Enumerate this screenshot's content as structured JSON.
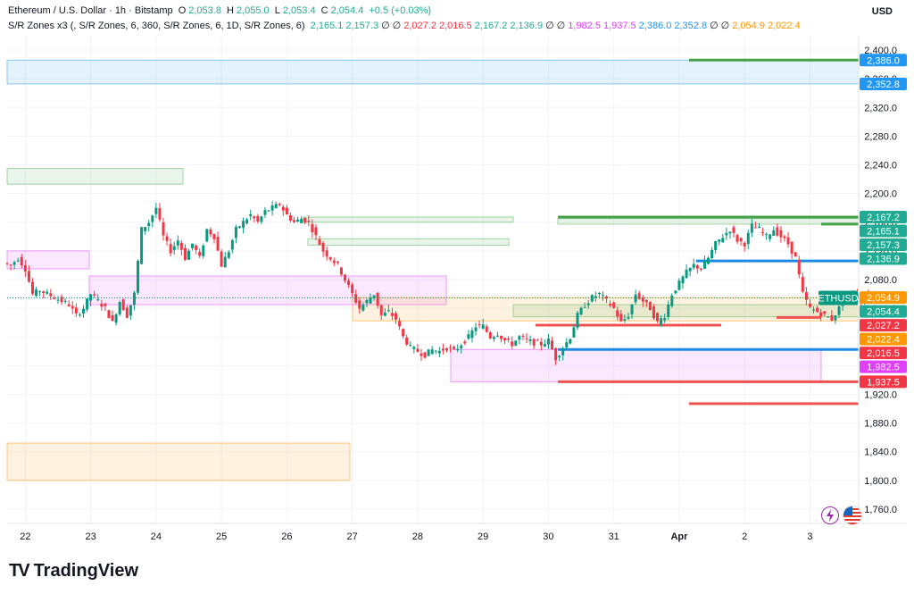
{
  "header": {
    "title": "Ethereum / U.S. Dollar · 1h · Bitstamp",
    "ohlc": [
      {
        "k": "O",
        "v": "2,053.8"
      },
      {
        "k": "H",
        "v": "2,055.0"
      },
      {
        "k": "L",
        "v": "2,053.4"
      },
      {
        "k": "C",
        "v": "2,054.4"
      }
    ],
    "change": "+0.5 (+0.03%)",
    "indicator_name": "S/R Zones x3 (, S/R Zones, 6, 360, S/R Zones, 6, 1D, S/R Zones, 6)",
    "indicator_values": [
      {
        "v": "2,165.1",
        "c": "#22ab94"
      },
      {
        "v": "2,157.3",
        "c": "#22ab94"
      },
      {
        "v": "∅",
        "c": "#131722"
      },
      {
        "v": "∅",
        "c": "#131722"
      },
      {
        "v": "2,027.2",
        "c": "#f23645"
      },
      {
        "v": "2,016.5",
        "c": "#f23645"
      },
      {
        "v": "2,167.2",
        "c": "#22ab94"
      },
      {
        "v": "2,136.9",
        "c": "#22ab94"
      },
      {
        "v": "∅",
        "c": "#131722"
      },
      {
        "v": "∅",
        "c": "#131722"
      },
      {
        "v": "1,982.5",
        "c": "#e040fb"
      },
      {
        "v": "1,937.5",
        "c": "#e040fb"
      },
      {
        "v": "2,386.0",
        "c": "#2196f3"
      },
      {
        "v": "2,352.8",
        "c": "#2196f3"
      },
      {
        "v": "∅",
        "c": "#131722"
      },
      {
        "v": "∅",
        "c": "#131722"
      },
      {
        "v": "2,054.9",
        "c": "#ff9800"
      },
      {
        "v": "2,022.4",
        "c": "#ff9800"
      }
    ]
  },
  "currency": "USD",
  "brand": "TradingView",
  "chart_data": {
    "type": "candlestick",
    "symbol": "ETHUSD",
    "ylim": [
      1740,
      2420
    ],
    "y_ticks": [
      1760,
      1800,
      1840,
      1880,
      1920,
      1960,
      2000,
      2040,
      2080,
      2120,
      2160,
      2200,
      2240,
      2280,
      2320,
      2360,
      2400
    ],
    "x_tick_labels": [
      "22",
      "23",
      "24",
      "25",
      "26",
      "27",
      "28",
      "29",
      "30",
      "31",
      "Apr",
      "2",
      "3"
    ],
    "close_path": [
      [
        0,
        2103
      ],
      [
        2,
        2100
      ],
      [
        4,
        2110
      ],
      [
        6,
        2095
      ],
      [
        8,
        2060
      ],
      [
        10,
        2065
      ],
      [
        12,
        2060
      ],
      [
        14,
        2055
      ],
      [
        16,
        2050
      ],
      [
        18,
        2045
      ],
      [
        20,
        2030
      ],
      [
        22,
        2040
      ],
      [
        24,
        2060
      ],
      [
        26,
        2050
      ],
      [
        28,
        2040
      ],
      [
        30,
        2020
      ],
      [
        32,
        2050
      ],
      [
        34,
        2030
      ],
      [
        36,
        2060
      ],
      [
        38,
        2150
      ],
      [
        40,
        2160
      ],
      [
        42,
        2180
      ],
      [
        44,
        2140
      ],
      [
        46,
        2120
      ],
      [
        48,
        2135
      ],
      [
        50,
        2110
      ],
      [
        52,
        2130
      ],
      [
        54,
        2110
      ],
      [
        56,
        2150
      ],
      [
        58,
        2140
      ],
      [
        60,
        2100
      ],
      [
        62,
        2120
      ],
      [
        64,
        2150
      ],
      [
        66,
        2160
      ],
      [
        68,
        2170
      ],
      [
        70,
        2160
      ],
      [
        72,
        2175
      ],
      [
        74,
        2180
      ],
      [
        76,
        2185
      ],
      [
        78,
        2170
      ],
      [
        80,
        2160
      ],
      [
        82,
        2165
      ],
      [
        84,
        2160
      ],
      [
        86,
        2140
      ],
      [
        88,
        2120
      ],
      [
        90,
        2110
      ],
      [
        92,
        2100
      ],
      [
        94,
        2080
      ],
      [
        96,
        2060
      ],
      [
        98,
        2040
      ],
      [
        100,
        2050
      ],
      [
        102,
        2060
      ],
      [
        104,
        2030
      ],
      [
        106,
        2035
      ],
      [
        108,
        2025
      ],
      [
        110,
        2000
      ],
      [
        112,
        1985
      ],
      [
        114,
        1980
      ],
      [
        116,
        1975
      ],
      [
        118,
        1982
      ],
      [
        120,
        1980
      ],
      [
        122,
        1985
      ],
      [
        124,
        1980
      ],
      [
        126,
        1990
      ],
      [
        128,
        2000
      ],
      [
        130,
        2015
      ],
      [
        132,
        2015
      ],
      [
        134,
        2000
      ],
      [
        136,
        2005
      ],
      [
        138,
        1995
      ],
      [
        140,
        1990
      ],
      [
        142,
        2000
      ],
      [
        144,
        1995
      ],
      [
        146,
        1992
      ],
      [
        148,
        1990
      ],
      [
        150,
        1995
      ],
      [
        152,
        1970
      ],
      [
        154,
        1985
      ],
      [
        156,
        2000
      ],
      [
        158,
        2030
      ],
      [
        160,
        2045
      ],
      [
        162,
        2055
      ],
      [
        164,
        2060
      ],
      [
        166,
        2050
      ],
      [
        168,
        2040
      ],
      [
        170,
        2020
      ],
      [
        172,
        2030
      ],
      [
        174,
        2060
      ],
      [
        176,
        2050
      ],
      [
        178,
        2040
      ],
      [
        180,
        2020
      ],
      [
        182,
        2030
      ],
      [
        184,
        2060
      ],
      [
        186,
        2075
      ],
      [
        188,
        2090
      ],
      [
        190,
        2100
      ],
      [
        192,
        2095
      ],
      [
        194,
        2110
      ],
      [
        196,
        2130
      ],
      [
        198,
        2140
      ],
      [
        200,
        2150
      ],
      [
        202,
        2135
      ],
      [
        204,
        2130
      ],
      [
        206,
        2155
      ],
      [
        208,
        2150
      ],
      [
        210,
        2140
      ],
      [
        212,
        2150
      ],
      [
        214,
        2140
      ],
      [
        216,
        2130
      ],
      [
        218,
        2110
      ],
      [
        220,
        2060
      ],
      [
        222,
        2040
      ],
      [
        224,
        2035
      ],
      [
        226,
        2030
      ],
      [
        228,
        2025
      ],
      [
        230,
        2040
      ],
      [
        232,
        2055
      ],
      [
        234,
        2060
      ],
      [
        236,
        2050
      ],
      [
        238,
        2060
      ],
      [
        240,
        2054
      ]
    ],
    "x_label_hours": [
      5,
      23,
      41,
      59,
      77,
      95,
      113,
      131,
      149,
      167,
      185,
      203,
      221
    ],
    "zones": [
      {
        "y1": 2386.0,
        "y2": 2352.8,
        "color": "#2196f3"
      },
      {
        "y1": 2235,
        "y2": 2213,
        "color": "#4caf50"
      },
      {
        "y1": 2167.2,
        "y2": 2160,
        "color": "#4caf50"
      },
      {
        "y1": 2165.1,
        "y2": 2157.3,
        "color": "#4caf50"
      },
      {
        "y1": 2136.9,
        "y2": 2128,
        "color": "#4caf50"
      },
      {
        "y1": 2120,
        "y2": 2095,
        "color": "#e040fb"
      },
      {
        "y1": 2085,
        "y2": 2045,
        "color": "#e040fb"
      },
      {
        "y1": 2054.9,
        "y2": 2022.4,
        "color": "#ff9800"
      },
      {
        "y1": 2045,
        "y2": 2028,
        "color": "#4caf50"
      },
      {
        "y1": 1982.5,
        "y2": 1937.5,
        "color": "#e040fb"
      },
      {
        "y1": 1852,
        "y2": 1800,
        "color": "#ff9800"
      }
    ],
    "levels": [
      {
        "y": 2386.0,
        "color": "#43a047"
      },
      {
        "y": 2167.2,
        "color": "#43a047"
      },
      {
        "y": 2157.3,
        "color": "#43a047"
      },
      {
        "y": 2106,
        "color": "#1e88e5"
      },
      {
        "y": 2027.2,
        "color": "#ef5350"
      },
      {
        "y": 2016.5,
        "color": "#ef5350"
      },
      {
        "y": 1982.5,
        "color": "#1e88e5"
      },
      {
        "y": 1937.5,
        "color": "#ef5350"
      },
      {
        "y": 1907,
        "color": "#ef5350"
      }
    ],
    "price_tags": [
      {
        "label": "2,386.0",
        "y": 2386.0,
        "color": "#2196f3"
      },
      {
        "label": "2,352.8",
        "y": 2352.8,
        "color": "#2196f3"
      },
      {
        "label": "2,167.2",
        "y": 2167.2,
        "color": "#22ab94"
      },
      {
        "label": "2,165.1",
        "y": 2165.1,
        "color": "#22ab94"
      },
      {
        "label": "2,157.3",
        "y": 2157.3,
        "color": "#22ab94"
      },
      {
        "label": "2,136.9",
        "y": 2136.9,
        "color": "#22ab94"
      },
      {
        "label": "2,054.9",
        "y": 2054.9,
        "color": "#ff9800"
      },
      {
        "label": "2,054.4",
        "y": 2054.4,
        "color": "#22ab94"
      },
      {
        "label": "2,027.2",
        "y": 2027.2,
        "color": "#f23645"
      },
      {
        "label": "2,022.4",
        "y": 2022.4,
        "color": "#ff9800"
      },
      {
        "label": "2,016.5",
        "y": 2016.5,
        "color": "#f23645"
      },
      {
        "label": "1,982.5",
        "y": 1982.5,
        "color": "#e040fb"
      },
      {
        "label": "1,937.5",
        "y": 1937.5,
        "color": "#f23645"
      }
    ],
    "current_price": 2054.4
  }
}
